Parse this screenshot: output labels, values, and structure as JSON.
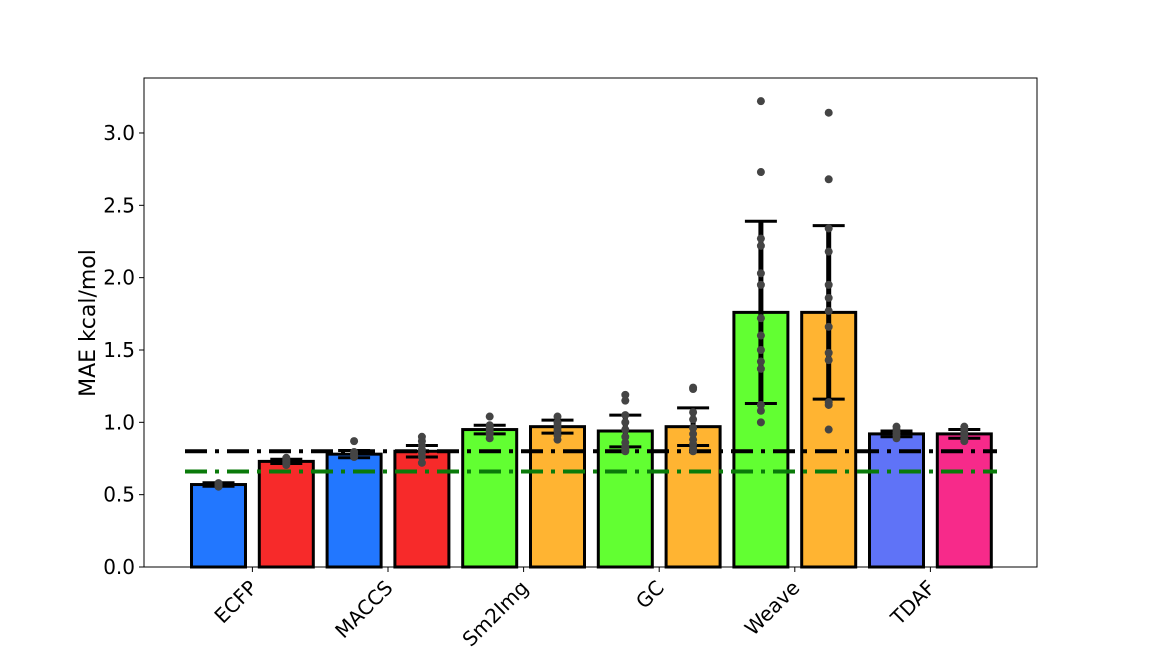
{
  "chart_data": {
    "type": "bar",
    "title": "",
    "xlabel": "",
    "ylabel": "MAE kcal/mol",
    "ylim": [
      0,
      3.38
    ],
    "yticks": [
      "0.0",
      "0.5",
      "1.0",
      "1.5",
      "2.0",
      "2.5",
      "3.0"
    ],
    "groups": [
      "ECFP",
      "MACCS",
      "Sm2Img",
      "GC",
      "Weave",
      "TDAF"
    ],
    "bars": [
      {
        "group": "ECFP",
        "value": 0.57,
        "err": 0.012,
        "color": "#2277ff",
        "points": [
          0.555,
          0.565,
          0.57,
          0.575,
          0.58
        ]
      },
      {
        "group": "ECFP",
        "value": 0.73,
        "err": 0.015,
        "color": "#f72a2a",
        "points": [
          0.705,
          0.715,
          0.725,
          0.735,
          0.745,
          0.755
        ]
      },
      {
        "group": "MACCS",
        "value": 0.78,
        "err": 0.025,
        "color": "#2277ff",
        "points": [
          0.76,
          0.77,
          0.78,
          0.795,
          0.87
        ]
      },
      {
        "group": "MACCS",
        "value": 0.8,
        "err": 0.04,
        "color": "#f72a2a",
        "points": [
          0.72,
          0.76,
          0.79,
          0.81,
          0.84,
          0.87,
          0.9
        ]
      },
      {
        "group": "Sm2Img",
        "value": 0.95,
        "err": 0.03,
        "color": "#62ff32",
        "points": [
          0.89,
          0.92,
          0.94,
          0.96,
          0.98,
          1.04
        ]
      },
      {
        "group": "Sm2Img",
        "value": 0.97,
        "err": 0.045,
        "color": "#ffb432",
        "points": [
          0.88,
          0.91,
          0.94,
          0.96,
          0.98,
          1.0,
          1.04
        ]
      },
      {
        "group": "GC",
        "value": 0.94,
        "err": 0.11,
        "color": "#62ff32",
        "points": [
          0.8,
          0.81,
          0.83,
          0.86,
          0.9,
          0.95,
          1.0,
          1.05,
          1.15,
          1.19
        ]
      },
      {
        "group": "GC",
        "value": 0.97,
        "err": 0.13,
        "color": "#ffb432",
        "points": [
          0.8,
          0.82,
          0.85,
          0.88,
          0.92,
          0.96,
          1.02,
          1.07,
          1.23,
          1.24
        ]
      },
      {
        "group": "Weave",
        "value": 1.76,
        "err": 0.63,
        "color": "#62ff32",
        "points": [
          1.0,
          1.08,
          1.12,
          1.37,
          1.42,
          1.5,
          1.6,
          1.72,
          1.95,
          2.03,
          2.22,
          2.27,
          2.73,
          3.22
        ]
      },
      {
        "group": "Weave",
        "value": 1.76,
        "err": 0.6,
        "color": "#ffb432",
        "points": [
          0.95,
          1.12,
          1.14,
          1.43,
          1.48,
          1.66,
          1.77,
          1.86,
          1.95,
          2.18,
          2.34,
          2.68,
          3.14
        ]
      },
      {
        "group": "TDAF",
        "value": 0.92,
        "err": 0.02,
        "color": "#5f73f7",
        "points": [
          0.89,
          0.91,
          0.93,
          0.95,
          0.97
        ]
      },
      {
        "group": "TDAF",
        "value": 0.92,
        "err": 0.03,
        "color": "#f72a8a",
        "points": [
          0.87,
          0.89,
          0.91,
          0.93,
          0.95,
          0.97
        ]
      }
    ],
    "reference_lines": [
      {
        "value": 0.8,
        "color": "#000000",
        "style": "dashdot"
      },
      {
        "value": 0.66,
        "color": "#0a7a0a",
        "style": "dashdot"
      }
    ],
    "grid": false,
    "legend": "none"
  }
}
